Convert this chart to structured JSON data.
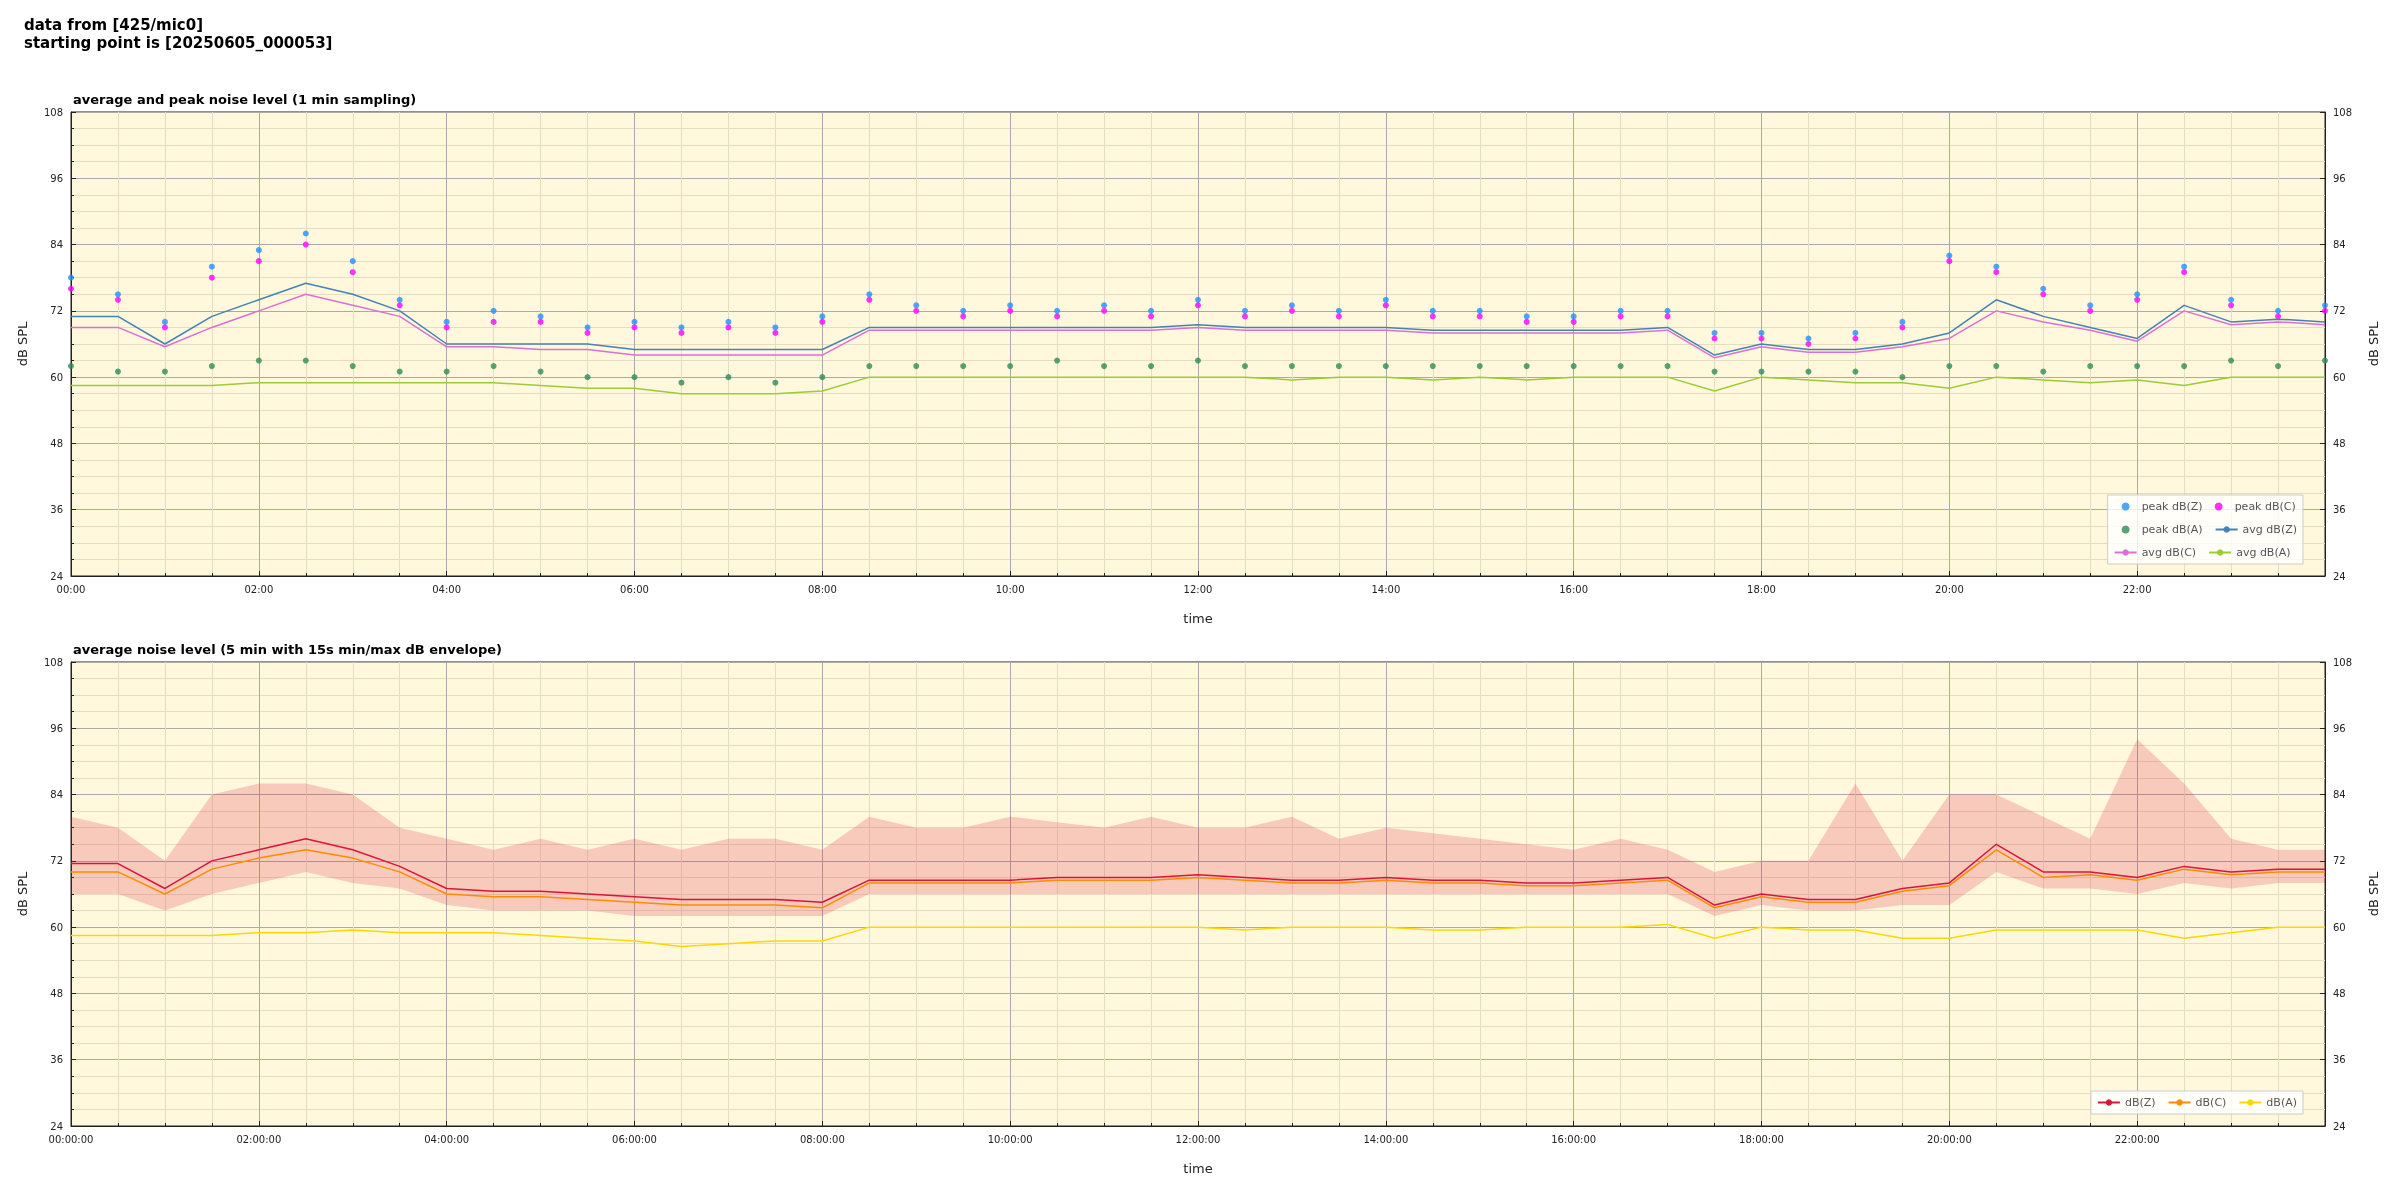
{
  "chart_data": [
    {
      "type": "line",
      "title": "average and peak noise level (1 min sampling)",
      "annotations": [
        "data from [425/mic0]",
        "starting point is [20250605_000053]"
      ],
      "xlabel": "time",
      "ylabel": "dB SPL",
      "y2label": "dB SPL",
      "xlim": [
        0,
        24
      ],
      "xticks": [
        {
          "value": 0,
          "label": "00:00"
        },
        {
          "value": 2,
          "label": "02:00"
        },
        {
          "value": 4,
          "label": "04:00"
        },
        {
          "value": 6,
          "label": "06:00"
        },
        {
          "value": 8,
          "label": "08:00"
        },
        {
          "value": 10,
          "label": "10:00"
        },
        {
          "value": 12,
          "label": "12:00"
        },
        {
          "value": 14,
          "label": "14:00"
        },
        {
          "value": 16,
          "label": "16:00"
        },
        {
          "value": 18,
          "label": "18:00"
        },
        {
          "value": 20,
          "label": "20:00"
        },
        {
          "value": 22,
          "label": "22:00"
        }
      ],
      "ylim": [
        24,
        108
      ],
      "yticks": [
        24,
        36,
        48,
        60,
        72,
        84,
        96,
        108
      ],
      "y2lim": [
        24,
        108
      ],
      "y2ticks": [
        24,
        36,
        48,
        60,
        72,
        84,
        96,
        108
      ],
      "grid": true,
      "legend": "bottom right",
      "x": [
        0,
        0.5,
        1,
        1.5,
        2,
        2.5,
        3,
        3.5,
        4,
        4.5,
        5,
        5.5,
        6,
        6.5,
        7,
        7.5,
        8,
        8.5,
        9,
        9.5,
        10,
        10.5,
        11,
        11.5,
        12,
        12.5,
        13,
        13.5,
        14,
        14.5,
        15,
        15.5,
        16,
        16.5,
        17,
        17.5,
        18,
        18.5,
        19,
        19.5,
        20,
        20.5,
        21,
        21.5,
        22,
        22.5,
        23,
        23.5,
        24
      ],
      "series": [
        {
          "name": "peak dB(Z)",
          "type": "scatter",
          "marker": "circle",
          "color": "#1e90ff",
          "values": [
            78,
            75,
            70,
            80,
            83,
            86,
            81,
            74,
            70,
            72,
            71,
            69,
            70,
            69,
            70,
            69,
            71,
            75,
            73,
            72,
            73,
            72,
            73,
            72,
            74,
            72,
            73,
            72,
            74,
            72,
            72,
            71,
            71,
            72,
            72,
            68,
            68,
            67,
            68,
            70,
            82,
            80,
            76,
            73,
            75,
            80,
            74,
            72,
            73
          ]
        },
        {
          "name": "peak dB(C)",
          "type": "scatter",
          "marker": "circle",
          "color": "#ff00ff",
          "values": [
            76,
            74,
            69,
            78,
            81,
            84,
            79,
            73,
            69,
            70,
            70,
            68,
            69,
            68,
            69,
            68,
            70,
            74,
            72,
            71,
            72,
            71,
            72,
            71,
            73,
            71,
            72,
            71,
            73,
            71,
            71,
            70,
            70,
            71,
            71,
            67,
            67,
            66,
            67,
            69,
            81,
            79,
            75,
            72,
            74,
            79,
            73,
            71,
            72
          ]
        },
        {
          "name": "peak dB(A)",
          "type": "scatter",
          "marker": "circle",
          "color": "#2e8b57",
          "values": [
            62,
            61,
            61,
            62,
            63,
            63,
            62,
            61,
            61,
            62,
            61,
            60,
            60,
            59,
            60,
            59,
            60,
            62,
            62,
            62,
            62,
            63,
            62,
            62,
            63,
            62,
            62,
            62,
            62,
            62,
            62,
            62,
            62,
            62,
            62,
            61,
            61,
            61,
            61,
            60,
            62,
            62,
            61,
            62,
            62,
            62,
            63,
            62,
            63
          ]
        },
        {
          "name": "avg dB(Z)",
          "color": "#4682b4",
          "values": [
            71,
            71,
            66,
            71,
            74,
            77,
            75,
            72,
            66,
            66,
            66,
            66,
            65,
            65,
            65,
            65,
            65,
            69,
            69,
            69,
            69,
            69,
            69,
            69,
            69.5,
            69,
            69,
            69,
            69,
            68.5,
            68.5,
            68.5,
            68.5,
            68.5,
            69,
            64,
            66,
            65,
            65,
            66,
            68,
            74,
            71,
            69,
            67,
            73,
            70,
            70.5,
            70
          ]
        },
        {
          "name": "avg dB(C)",
          "color": "#da70d6",
          "values": [
            69,
            69,
            65.5,
            69,
            72,
            75,
            73,
            71,
            65.5,
            65.5,
            65,
            65,
            64,
            64,
            64,
            64,
            64,
            68.5,
            68.5,
            68.5,
            68.5,
            68.5,
            68.5,
            68.5,
            69,
            68.5,
            68.5,
            68.5,
            68.5,
            68,
            68,
            68,
            68,
            68,
            68.5,
            63.5,
            65.5,
            64.5,
            64.5,
            65.5,
            67,
            72,
            70,
            68.5,
            66.5,
            72,
            69.5,
            70,
            69.5
          ]
        },
        {
          "name": "avg dB(A)",
          "color": "#9acd32",
          "values": [
            58.5,
            58.5,
            58.5,
            58.5,
            59,
            59,
            59,
            59,
            59,
            59,
            58.5,
            58,
            58,
            57,
            57,
            57,
            57.5,
            60,
            60,
            60,
            60,
            60,
            60,
            60,
            60,
            60,
            59.5,
            60,
            60,
            59.5,
            60,
            59.5,
            60,
            60,
            60,
            57.5,
            60,
            59.5,
            59,
            59,
            58,
            60,
            59.5,
            59,
            59.5,
            58.5,
            60,
            60,
            60
          ]
        }
      ]
    },
    {
      "type": "line",
      "title": "average noise level (5 min with 15s min/max dB envelope)",
      "xlabel": "time",
      "ylabel": "dB SPL",
      "y2label": "dB SPL",
      "xlim": [
        0,
        24
      ],
      "xticks": [
        {
          "value": 0,
          "label": "00:00:00"
        },
        {
          "value": 2,
          "label": "02:00:00"
        },
        {
          "value": 4,
          "label": "04:00:00"
        },
        {
          "value": 6,
          "label": "06:00:00"
        },
        {
          "value": 8,
          "label": "08:00:00"
        },
        {
          "value": 10,
          "label": "10:00:00"
        },
        {
          "value": 12,
          "label": "12:00:00"
        },
        {
          "value": 14,
          "label": "14:00:00"
        },
        {
          "value": 16,
          "label": "16:00:00"
        },
        {
          "value": 18,
          "label": "18:00:00"
        },
        {
          "value": 20,
          "label": "20:00:00"
        },
        {
          "value": 22,
          "label": "22:00:00"
        }
      ],
      "ylim": [
        24,
        108
      ],
      "yticks": [
        24,
        36,
        48,
        60,
        72,
        84,
        96,
        108
      ],
      "y2lim": [
        24,
        108
      ],
      "y2ticks": [
        24,
        36,
        48,
        60,
        72,
        84,
        96,
        108
      ],
      "grid": true,
      "legend": "bottom right",
      "x": [
        0,
        0.5,
        1,
        1.5,
        2,
        2.5,
        3,
        3.5,
        4,
        4.5,
        5,
        5.5,
        6,
        6.5,
        7,
        7.5,
        8,
        8.5,
        9,
        9.5,
        10,
        10.5,
        11,
        11.5,
        12,
        12.5,
        13,
        13.5,
        14,
        14.5,
        15,
        15.5,
        16,
        16.5,
        17,
        17.5,
        18,
        18.5,
        19,
        19.5,
        20,
        20.5,
        21,
        21.5,
        22,
        22.5,
        23,
        23.5,
        24
      ],
      "series": [
        {
          "name": "dB(Z)",
          "color": "#dc143c",
          "values": [
            71.5,
            71.5,
            67,
            72,
            74,
            76,
            74,
            71,
            67,
            66.5,
            66.5,
            66,
            65.5,
            65,
            65,
            65,
            64.5,
            68.5,
            68.5,
            68.5,
            68.5,
            69,
            69,
            69,
            69.5,
            69,
            68.5,
            68.5,
            69,
            68.5,
            68.5,
            68,
            68,
            68.5,
            69,
            64,
            66,
            65,
            65,
            67,
            68,
            75,
            70,
            70,
            69,
            71,
            70,
            70.5,
            70.5
          ],
          "lower": [
            66,
            66,
            63,
            66,
            68,
            70,
            68,
            67,
            64,
            63,
            63,
            63,
            62,
            62,
            62,
            62,
            62,
            66,
            66,
            66,
            66,
            66,
            66,
            66,
            66,
            66,
            66,
            66,
            66,
            66,
            66,
            66,
            66,
            66,
            66,
            62,
            64,
            63,
            63,
            64,
            64,
            70,
            67,
            67,
            66,
            68,
            67,
            68,
            68
          ],
          "upper": [
            80,
            78,
            72,
            84,
            86,
            86,
            84,
            78,
            76,
            74,
            76,
            74,
            76,
            74,
            76,
            76,
            74,
            80,
            78,
            78,
            80,
            79,
            78,
            80,
            78,
            78,
            80,
            76,
            78,
            77,
            76,
            75,
            74,
            76,
            74,
            70,
            72,
            72,
            86,
            72,
            84,
            84,
            80,
            76,
            94,
            86,
            76,
            74,
            74
          ]
        },
        {
          "name": "dB(C)",
          "color": "#ff8c00",
          "values": [
            70,
            70,
            66,
            70.5,
            72.5,
            74,
            72.5,
            70,
            66,
            65.5,
            65.5,
            65,
            64.5,
            64,
            64,
            64,
            63.5,
            68,
            68,
            68,
            68,
            68.5,
            68.5,
            68.5,
            69,
            68.5,
            68,
            68,
            68.5,
            68,
            68,
            67.5,
            67.5,
            68,
            68.5,
            63.5,
            65.5,
            64.5,
            64.5,
            66.5,
            67.5,
            74,
            69,
            69.5,
            68.5,
            70.5,
            69.5,
            70,
            70
          ]
        },
        {
          "name": "dB(A)",
          "color": "#ffd700",
          "values": [
            58.5,
            58.5,
            58.5,
            58.5,
            59,
            59,
            59.5,
            59,
            59,
            59,
            58.5,
            58,
            57.5,
            56.5,
            57,
            57.5,
            57.5,
            60,
            60,
            60,
            60,
            60,
            60,
            60,
            60,
            59.5,
            60,
            60,
            60,
            59.5,
            59.5,
            60,
            60,
            60,
            60.5,
            58,
            60,
            59.5,
            59.5,
            58,
            58,
            59.5,
            59.5,
            59.5,
            59.5,
            58,
            59,
            60,
            60
          ]
        }
      ]
    }
  ]
}
